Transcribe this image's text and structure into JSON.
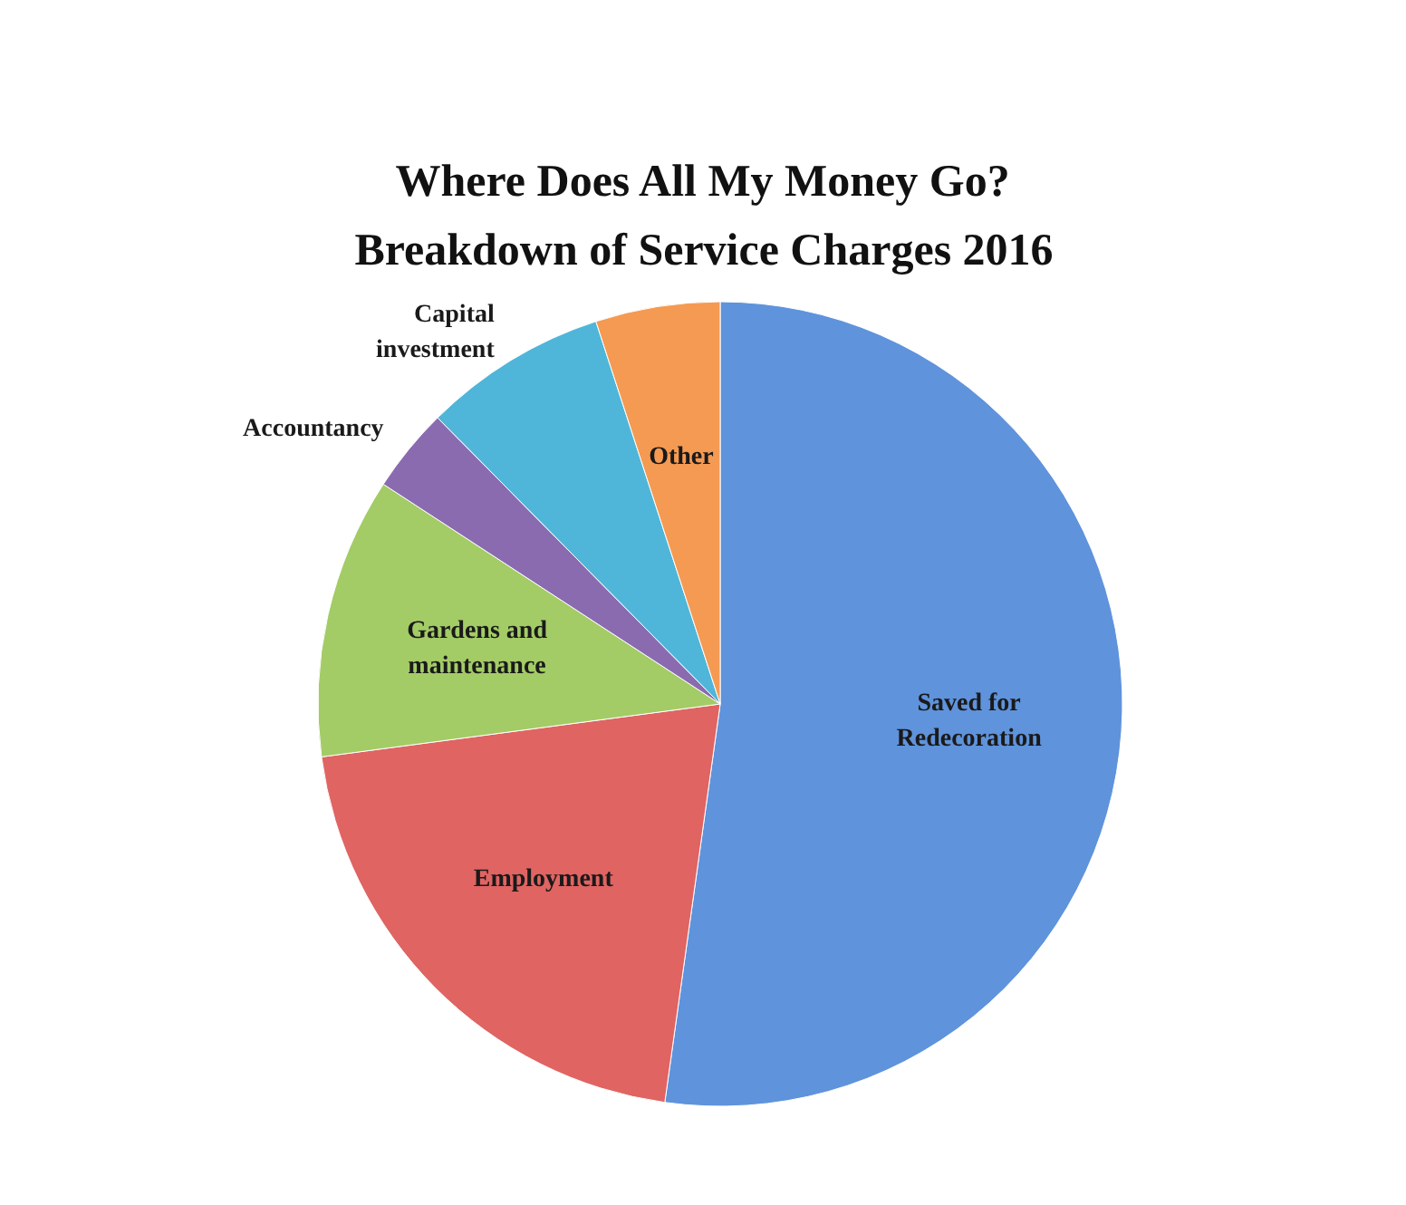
{
  "chart_data": {
    "type": "pie",
    "title": "Where Does All My Money Go?",
    "subtitle": "Breakdown of Service Charges 2016",
    "categories": [
      "Saved for Redecoration",
      "Employment",
      "Gardens and maintenance",
      "Accountancy",
      "Capital investment",
      "Other"
    ],
    "values": [
      52.2,
      20.7,
      11.3,
      3.4,
      7.4,
      5.0
    ],
    "colors": [
      "#5f93dc",
      "#e06462",
      "#a3cc66",
      "#8a6bb0",
      "#4fb6d9",
      "#f59a52"
    ]
  }
}
